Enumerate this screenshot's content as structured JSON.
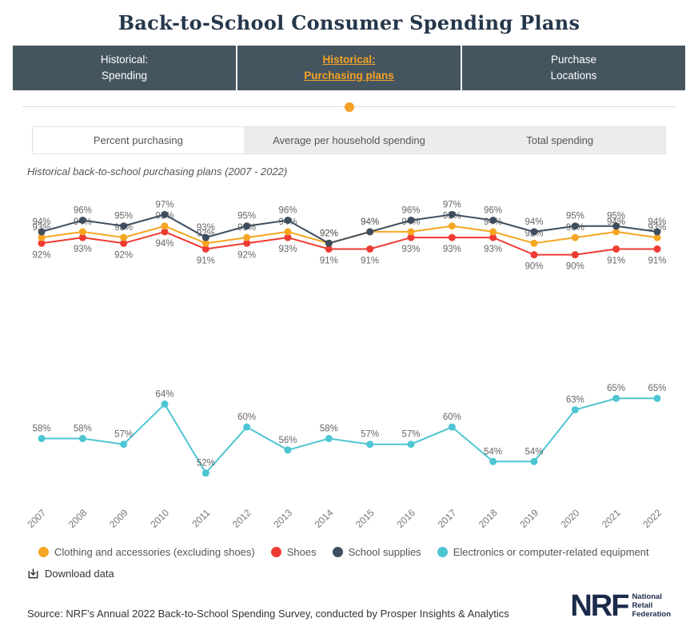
{
  "title": "Back-to-School Consumer Spending Plans",
  "nav_tabs": [
    {
      "line1": "Historical:",
      "line2": "Spending",
      "active": false
    },
    {
      "line1": "Historical:",
      "line2": "Purchasing plans",
      "active": true
    },
    {
      "line1": "Purchase",
      "line2": "Locations",
      "active": false
    }
  ],
  "sub_tabs": [
    {
      "label": "Percent purchasing",
      "active": true
    },
    {
      "label": "Average per household spending",
      "active": false
    },
    {
      "label": "Total spending",
      "active": false
    }
  ],
  "chart_subtitle": "Historical back-to-school purchasing plans (2007 - 2022)",
  "chart_data": {
    "type": "line",
    "title": "Historical back-to-school purchasing plans (2007 - 2022)",
    "categories": [
      2007,
      2008,
      2009,
      2010,
      2011,
      2012,
      2013,
      2014,
      2015,
      2016,
      2017,
      2018,
      2019,
      2020,
      2021,
      2022
    ],
    "series": [
      {
        "name": "Clothing and accessories (excluding shoes)",
        "color": "#F5A623",
        "values": [
          93,
          94,
          93,
          95,
          92,
          93,
          94,
          92,
          94,
          94,
          95,
          94,
          92,
          93,
          94,
          93
        ],
        "label_position": "above"
      },
      {
        "name": "Shoes",
        "color": "#EE3B33",
        "values": [
          92,
          93,
          92,
          94,
          91,
          92,
          93,
          91,
          91,
          93,
          93,
          93,
          90,
          90,
          91,
          91
        ],
        "label_position": "below"
      },
      {
        "name": "School supplies",
        "color": "#3E4E5E",
        "values": [
          94,
          96,
          95,
          97,
          93,
          95,
          96,
          92,
          94,
          96,
          97,
          96,
          94,
          95,
          95,
          94
        ],
        "label_position": "above"
      },
      {
        "name": "Electronics or computer-related equipment",
        "color": "#4EC5D3",
        "values": [
          58,
          58,
          57,
          64,
          52,
          60,
          56,
          58,
          57,
          57,
          60,
          54,
          54,
          63,
          65,
          65
        ],
        "label_position": "above"
      }
    ],
    "unit": "%",
    "ylim": [
      50,
      99
    ],
    "grid": false,
    "legend_position": "bottom",
    "xlabel": "",
    "ylabel": ""
  },
  "download_label": "Download data",
  "source": "Source: NRF's Annual 2022 Back-to-School Spending Survey, conducted by Prosper Insights & Analytics",
  "logo": {
    "text": "NRF",
    "tagline_lines": [
      "National",
      "Retail",
      "Federation"
    ]
  }
}
